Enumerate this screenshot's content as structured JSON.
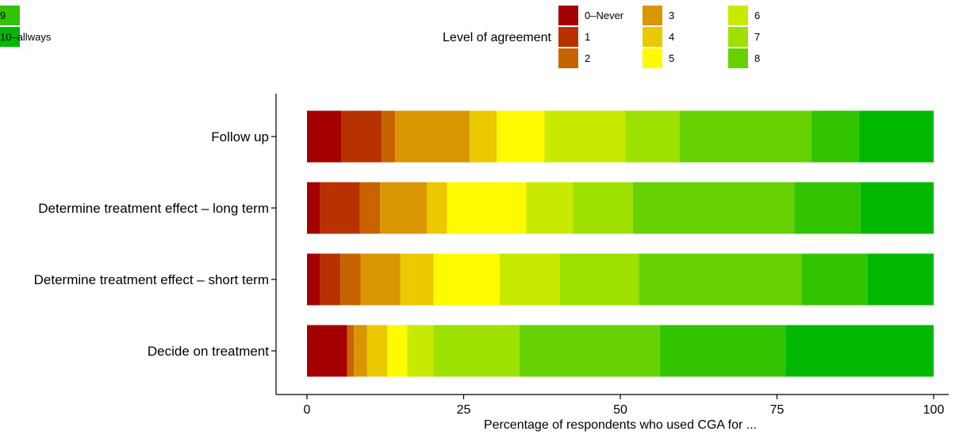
{
  "chart_data": {
    "type": "bar",
    "orientation": "horizontal",
    "stacked": true,
    "title": "",
    "xlabel": "Percentage of respondents who used CGA for ...",
    "ylabel": "",
    "xlim": [
      0,
      100
    ],
    "xticks": [
      0,
      25,
      50,
      75,
      100
    ],
    "grid": false,
    "legend": {
      "title": "Level of agreement",
      "position": "top"
    },
    "categories": [
      "Follow up",
      "Determine treatment effect – long term",
      "Determine treatment effect – short term",
      "Decide on treatment"
    ],
    "series": [
      {
        "name": "0–Never",
        "color": "#a50000",
        "values": [
          5.3,
          2.1,
          2.1,
          6.4
        ]
      },
      {
        "name": "1",
        "color": "#b83200",
        "values": [
          6.3,
          6.3,
          3.2,
          0
        ]
      },
      {
        "name": "2",
        "color": "#c86400",
        "values": [
          2.1,
          3.2,
          3.2,
          1.1
        ]
      },
      {
        "name": "3",
        "color": "#da9600",
        "values": [
          11.6,
          7.4,
          6.3,
          2.1
        ]
      },
      {
        "name": "4",
        "color": "#ebc800",
        "values": [
          4.2,
          3.2,
          5.3,
          3.2
        ]
      },
      {
        "name": "5",
        "color": "#fffa00",
        "values": [
          7.4,
          12.6,
          10.5,
          3.2
        ]
      },
      {
        "name": "6",
        "color": "#c8ea00",
        "values": [
          12.6,
          7.4,
          9.5,
          4.2
        ]
      },
      {
        "name": "7",
        "color": "#9ee000",
        "values": [
          8.4,
          9.5,
          12.6,
          13.7
        ]
      },
      {
        "name": "8",
        "color": "#66d100",
        "values": [
          20.5,
          25.6,
          25.8,
          22.4
        ]
      },
      {
        "name": "9",
        "color": "#33c400",
        "values": [
          7.4,
          10.5,
          10.5,
          20.1
        ]
      },
      {
        "name": "10–allways",
        "color": "#00b800",
        "values": [
          11.6,
          11.6,
          10.5,
          23.6
        ]
      }
    ]
  }
}
